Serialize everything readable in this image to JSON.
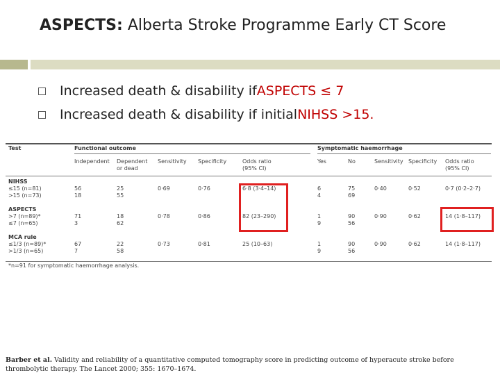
{
  "slide": {
    "title_bold": "ASPECTS:",
    "title_rest": " Alberta Stroke Programme Early CT Score",
    "bullets": [
      {
        "prefix": "Increased death & disability if ",
        "highlight": "ASPECTS ≤ 7",
        "suffix": ""
      },
      {
        "prefix": "Increased death & disability if initial ",
        "highlight": "NIHSS >15.",
        "suffix": ""
      }
    ],
    "accent_color": "#c00000",
    "highlight_box_color": "#e02020"
  },
  "table": {
    "group_headers": {
      "test": "Test",
      "functional": "Functional outcome",
      "symptomatic": "Symptomatic haemorrhage"
    },
    "column_headers": [
      "Independent",
      "Dependent or dead",
      "Sensitivity",
      "Specificity",
      "Odds ratio (95% CI)",
      "Yes",
      "No",
      "Sensitivity",
      "Specificity",
      "Odds ratio (95% CI)"
    ],
    "sections": [
      {
        "name": "NIHSS",
        "rows": [
          {
            "label": "≤15 (n=81)",
            "cells": [
              "56",
              "25",
              "0·69",
              "0·76",
              "6·8 (3·4–14)",
              "6",
              "75",
              "0·40",
              "0·52",
              "0·7 (0·2–2·7)"
            ]
          },
          {
            "label": ">15 (n=73)",
            "cells": [
              "18",
              "55",
              "",
              "",
              "",
              "4",
              "69",
              "",
              "",
              ""
            ]
          }
        ]
      },
      {
        "name": "ASPECTS",
        "rows": [
          {
            "label": ">7 (n=89)*",
            "cells": [
              "71",
              "18",
              "0·78",
              "0·86",
              "82 (23–290)",
              "1",
              "90",
              "0·90",
              "0·62",
              "14 (1·8–117)"
            ]
          },
          {
            "label": "≤7 (n=65)",
            "cells": [
              "3",
              "62",
              "",
              "",
              "",
              "9",
              "56",
              "",
              "",
              ""
            ]
          }
        ]
      },
      {
        "name": "MCA rule",
        "rows": [
          {
            "label": "≤1/3 (n=89)*",
            "cells": [
              "67",
              "22",
              "0·73",
              "0·81",
              "25 (10–63)",
              "1",
              "90",
              "0·90",
              "0·62",
              "14 (1·8–117)"
            ]
          },
          {
            "label": ">1/3 (n=65)",
            "cells": [
              "7",
              "58",
              "",
              "",
              "",
              "9",
              "56",
              "",
              "",
              ""
            ]
          }
        ]
      }
    ],
    "footnote": "*n=91 for symptomatic haemorrhage analysis."
  },
  "citation": {
    "authors": "Barber et al.",
    "text": " Validity and reliability of a quantitative computed tomography score in predicting outcome of hyperacute stroke before thrombolytic therapy. The Lancet 2000; 355: 1670–1674."
  }
}
